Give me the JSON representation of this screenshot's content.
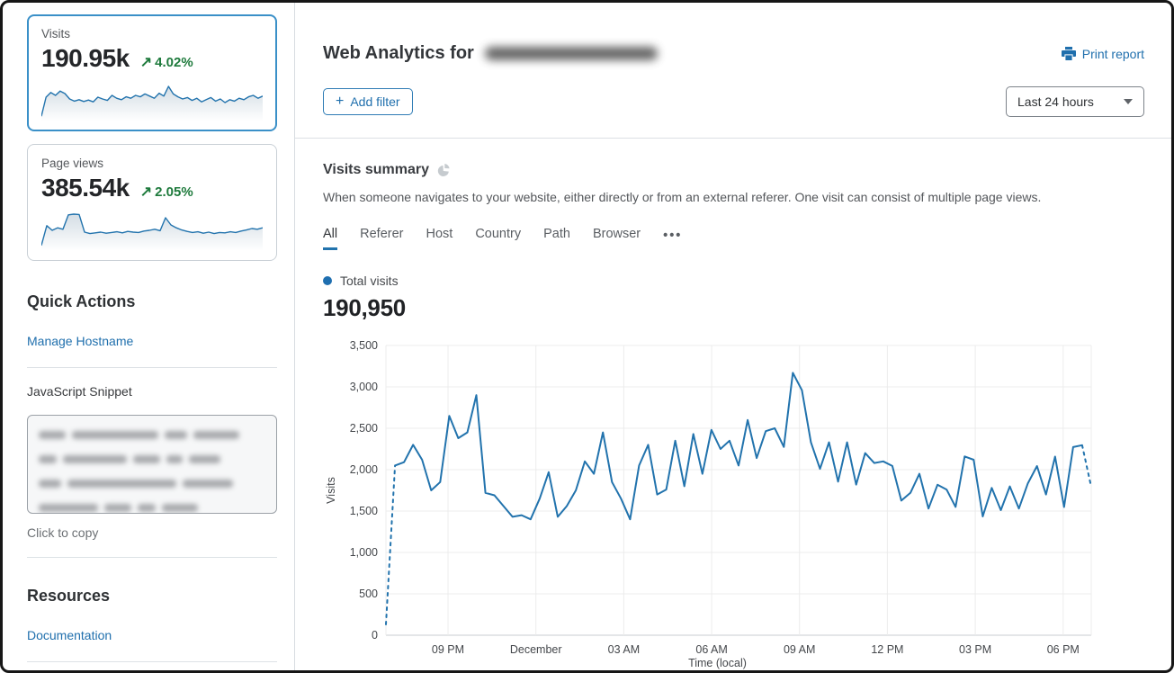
{
  "colors": {
    "accent": "#1f6fad",
    "positive": "#1e7a3c",
    "chart_line": "#2273ad",
    "selected_card_border": "#3a90c8"
  },
  "sidebar": {
    "visits_card": {
      "label": "Visits",
      "value": "190.95k",
      "delta": "4.02%",
      "arrow": "↗",
      "spark": [
        2,
        55,
        68,
        60,
        72,
        65,
        50,
        44,
        48,
        43,
        47,
        42,
        55,
        50,
        46,
        60,
        52,
        48,
        56,
        52,
        60,
        56,
        64,
        58,
        52,
        66,
        58,
        85,
        64,
        56,
        50,
        54,
        46,
        52,
        42,
        48,
        54,
        44,
        50,
        40,
        48,
        44,
        52,
        48,
        56,
        60,
        52,
        58
      ]
    },
    "pageviews_card": {
      "label": "Page views",
      "value": "385.54k",
      "delta": "2.05%",
      "arrow": "↗",
      "spark": [
        3,
        58,
        45,
        52,
        48,
        88,
        90,
        89,
        40,
        36,
        38,
        40,
        37,
        39,
        41,
        38,
        42,
        40,
        39,
        43,
        45,
        48,
        44,
        80,
        60,
        52,
        46,
        42,
        39,
        41,
        37,
        40,
        36,
        39,
        38,
        41,
        39,
        43,
        46,
        50,
        48,
        52
      ]
    },
    "quick_actions": {
      "title": "Quick Actions",
      "manage_hostname": "Manage Hostname",
      "snippet_label": "JavaScript Snippet",
      "copy_hint": "Click to copy"
    },
    "resources": {
      "title": "Resources",
      "documentation": "Documentation"
    }
  },
  "header": {
    "title": "Web Analytics for",
    "print_report": "Print report",
    "add_filter_plus": "+",
    "add_filter": "Add filter",
    "time_range": "Last 24 hours"
  },
  "summary": {
    "title": "Visits summary",
    "description": "When someone navigates to your website, either directly or from an external referer. One visit can consist of multiple page views.",
    "tabs": [
      "All",
      "Referer",
      "Host",
      "Country",
      "Path",
      "Browser"
    ],
    "active_tab": "All",
    "overflow": "•••",
    "legend": "Total visits",
    "total": "190,950"
  },
  "chart_data": {
    "type": "line",
    "title": "Total visits",
    "ylabel": "Visits",
    "xlabel": "Time (local)",
    "ylim": [
      0,
      3500
    ],
    "yticks": [
      0,
      500,
      1000,
      1500,
      2000,
      2500,
      3000,
      3500
    ],
    "ytick_labels": [
      "0",
      "500",
      "1,000",
      "1,500",
      "2,000",
      "2,500",
      "3,000",
      "3,500"
    ],
    "xticks": [
      "09 PM",
      "December",
      "03 AM",
      "06 AM",
      "09 AM",
      "12 PM",
      "03 PM",
      "06 PM"
    ],
    "grid": true,
    "legend_position": "top-left",
    "line_color": "#2273ad",
    "dashed_start": true,
    "dashed_end": true,
    "series": [
      {
        "name": "Total visits",
        "values": [
          130,
          2050,
          2090,
          2300,
          2120,
          1750,
          1850,
          2650,
          2380,
          2450,
          2900,
          1720,
          1690,
          1560,
          1430,
          1450,
          1400,
          1650,
          1970,
          1430,
          1560,
          1750,
          2100,
          1950,
          2450,
          1850,
          1650,
          1400,
          2050,
          2300,
          1700,
          1760,
          2350,
          1800,
          2430,
          1950,
          2480,
          2250,
          2350,
          2050,
          2600,
          2140,
          2465,
          2500,
          2275,
          3170,
          2960,
          2330,
          2010,
          2330,
          1855,
          2330,
          1820,
          2200,
          2080,
          2100,
          2045,
          1626,
          1720,
          1950,
          1530,
          1817,
          1760,
          1550,
          2160,
          2120,
          1435,
          1779,
          1511,
          1798,
          1530,
          1836,
          2043,
          1700,
          2158,
          1549,
          2273,
          2296,
          1790
        ]
      }
    ]
  }
}
